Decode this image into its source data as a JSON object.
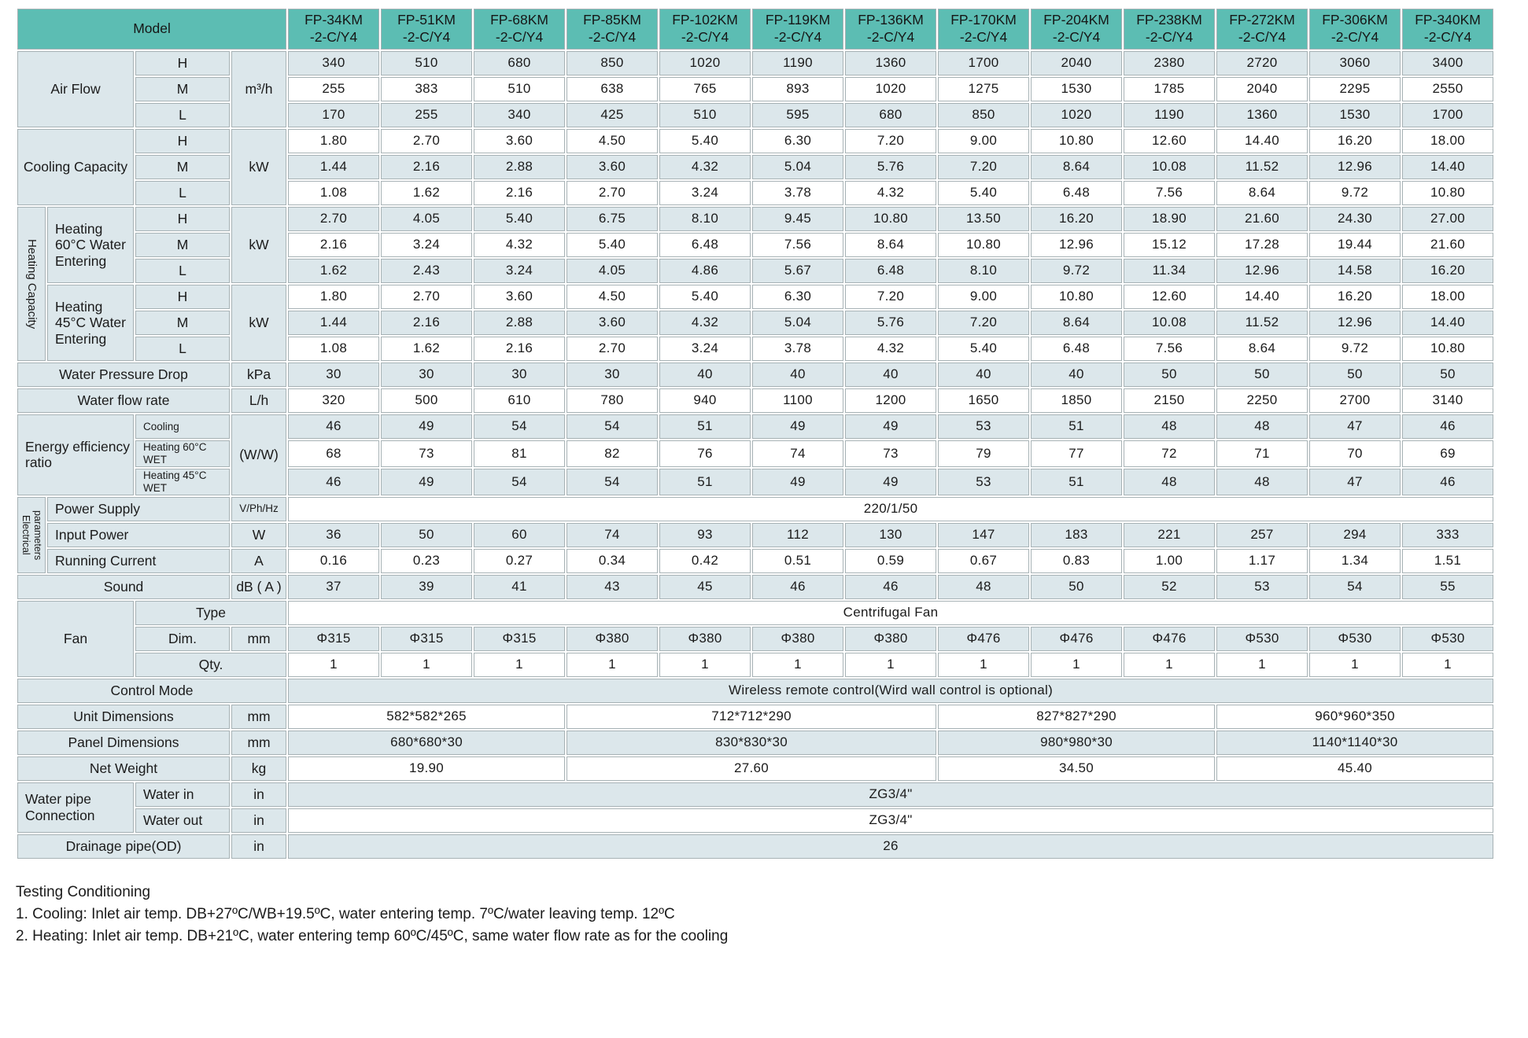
{
  "header": {
    "model_label": "Model",
    "models": [
      [
        "FP-34KM",
        "-2-C/Y4"
      ],
      [
        "FP-51KM",
        "-2-C/Y4"
      ],
      [
        "FP-68KM",
        "-2-C/Y4"
      ],
      [
        "FP-85KM",
        "-2-C/Y4"
      ],
      [
        "FP-102KM",
        "-2-C/Y4"
      ],
      [
        "FP-119KM",
        "-2-C/Y4"
      ],
      [
        "FP-136KM",
        "-2-C/Y4"
      ],
      [
        "FP-170KM",
        "-2-C/Y4"
      ],
      [
        "FP-204KM",
        "-2-C/Y4"
      ],
      [
        "FP-238KM",
        "-2-C/Y4"
      ],
      [
        "FP-272KM",
        "-2-C/Y4"
      ],
      [
        "FP-306KM",
        "-2-C/Y4"
      ],
      [
        "FP-340KM",
        "-2-C/Y4"
      ]
    ]
  },
  "colors": {
    "header_teal": "#5cbdb3",
    "row_shade": "#dce7eb",
    "grid_line": "#a7b2b5"
  },
  "table": {
    "rows": [
      {
        "n": "airflow-h",
        "cells": [
          {
            "t": "Air Flow",
            "c": 2,
            "r": 3
          },
          {
            "t": "H"
          },
          {
            "t": "m³/h",
            "r": 3
          }
        ],
        "vals": [
          "340",
          "510",
          "680",
          "850",
          "1020",
          "1190",
          "1360",
          "1700",
          "2040",
          "2380",
          "2720",
          "3060",
          "3400"
        ]
      },
      {
        "n": "airflow-m",
        "cells": [
          {
            "t": "M"
          }
        ],
        "vals": [
          "255",
          "383",
          "510",
          "638",
          "765",
          "893",
          "1020",
          "1275",
          "1530",
          "1785",
          "2040",
          "2295",
          "2550"
        ]
      },
      {
        "n": "airflow-l",
        "cells": [
          {
            "t": "L"
          }
        ],
        "vals": [
          "170",
          "255",
          "340",
          "425",
          "510",
          "595",
          "680",
          "850",
          "1020",
          "1190",
          "1360",
          "1530",
          "1700"
        ]
      },
      {
        "n": "cooling-h",
        "cells": [
          {
            "t": "Cooling Capacity",
            "c": 2,
            "r": 3
          },
          {
            "t": "H"
          },
          {
            "t": "kW",
            "r": 3
          }
        ],
        "vals": [
          "1.80",
          "2.70",
          "3.60",
          "4.50",
          "5.40",
          "6.30",
          "7.20",
          "9.00",
          "10.80",
          "12.60",
          "14.40",
          "16.20",
          "18.00"
        ]
      },
      {
        "n": "cooling-m",
        "cells": [
          {
            "t": "M"
          }
        ],
        "vals": [
          "1.44",
          "2.16",
          "2.88",
          "3.60",
          "4.32",
          "5.04",
          "5.76",
          "7.20",
          "8.64",
          "10.08",
          "11.52",
          "12.96",
          "14.40"
        ]
      },
      {
        "n": "cooling-l",
        "cells": [
          {
            "t": "L"
          }
        ],
        "vals": [
          "1.08",
          "1.62",
          "2.16",
          "2.70",
          "3.24",
          "3.78",
          "4.32",
          "5.40",
          "6.48",
          "7.56",
          "8.64",
          "9.72",
          "10.80"
        ]
      },
      {
        "n": "heating60-h",
        "cells": [
          {
            "t": "Heating Capacity",
            "r": 6,
            "v": 1
          },
          {
            "t": "Heating 60°C Water Entering",
            "r": 3,
            "a": 1
          },
          {
            "t": "H"
          },
          {
            "t": "kW",
            "r": 3
          }
        ],
        "vals": [
          "2.70",
          "4.05",
          "5.40",
          "6.75",
          "8.10",
          "9.45",
          "10.80",
          "13.50",
          "16.20",
          "18.90",
          "21.60",
          "24.30",
          "27.00"
        ]
      },
      {
        "n": "heating60-m",
        "cells": [
          {
            "t": "M"
          }
        ],
        "vals": [
          "2.16",
          "3.24",
          "4.32",
          "5.40",
          "6.48",
          "7.56",
          "8.64",
          "10.80",
          "12.96",
          "15.12",
          "17.28",
          "19.44",
          "21.60"
        ]
      },
      {
        "n": "heating60-l",
        "cells": [
          {
            "t": "L"
          }
        ],
        "vals": [
          "1.62",
          "2.43",
          "3.24",
          "4.05",
          "4.86",
          "5.67",
          "6.48",
          "8.10",
          "9.72",
          "11.34",
          "12.96",
          "14.58",
          "16.20"
        ]
      },
      {
        "n": "heating45-h",
        "cells": [
          {
            "t": "Heating 45°C Water Entering",
            "r": 3,
            "a": 1
          },
          {
            "t": "H"
          },
          {
            "t": "kW",
            "r": 3
          }
        ],
        "vals": [
          "1.80",
          "2.70",
          "3.60",
          "4.50",
          "5.40",
          "6.30",
          "7.20",
          "9.00",
          "10.80",
          "12.60",
          "14.40",
          "16.20",
          "18.00"
        ]
      },
      {
        "n": "heating45-m",
        "cells": [
          {
            "t": "M"
          }
        ],
        "vals": [
          "1.44",
          "2.16",
          "2.88",
          "3.60",
          "4.32",
          "5.04",
          "5.76",
          "7.20",
          "8.64",
          "10.08",
          "11.52",
          "12.96",
          "14.40"
        ]
      },
      {
        "n": "heating45-l",
        "cells": [
          {
            "t": "L"
          }
        ],
        "vals": [
          "1.08",
          "1.62",
          "2.16",
          "2.70",
          "3.24",
          "3.78",
          "4.32",
          "5.40",
          "6.48",
          "7.56",
          "8.64",
          "9.72",
          "10.80"
        ]
      },
      {
        "n": "water-pressure-drop",
        "cells": [
          {
            "t": "Water Pressure Drop",
            "c": 3
          },
          {
            "t": "kPa"
          }
        ],
        "vals": [
          "30",
          "30",
          "30",
          "30",
          "40",
          "40",
          "40",
          "40",
          "40",
          "50",
          "50",
          "50",
          "50"
        ]
      },
      {
        "n": "water-flow-rate",
        "cells": [
          {
            "t": "Water flow rate",
            "c": 3
          },
          {
            "t": "L/h"
          }
        ],
        "vals": [
          "320",
          "500",
          "610",
          "780",
          "940",
          "1100",
          "1200",
          "1650",
          "1850",
          "2150",
          "2250",
          "2700",
          "3140"
        ]
      },
      {
        "n": "eer-cooling",
        "cells": [
          {
            "t": "Energy efficiency ratio",
            "c": 2,
            "r": 3,
            "a": 1
          },
          {
            "t": "Cooling",
            "a": 1,
            "sm": 1
          },
          {
            "t": "(W/W)",
            "r": 3
          }
        ],
        "vals": [
          "46",
          "49",
          "54",
          "54",
          "51",
          "49",
          "49",
          "53",
          "51",
          "48",
          "48",
          "47",
          "46"
        ]
      },
      {
        "n": "eer-heating60",
        "cells": [
          {
            "t": "Heating 60°C WET",
            "a": 1,
            "sm": 1
          }
        ],
        "vals": [
          "68",
          "73",
          "81",
          "82",
          "76",
          "74",
          "73",
          "79",
          "77",
          "72",
          "71",
          "70",
          "69"
        ]
      },
      {
        "n": "eer-heating45",
        "cells": [
          {
            "t": "Heating 45°C WET",
            "a": 1,
            "sm": 1
          }
        ],
        "vals": [
          "46",
          "49",
          "54",
          "54",
          "51",
          "49",
          "49",
          "53",
          "51",
          "48",
          "48",
          "47",
          "46"
        ]
      },
      {
        "n": "power-supply",
        "cells": [
          {
            "t": "Electrical parameters",
            "r": 3,
            "v": 1,
            "sm": 1
          },
          {
            "t": "Power Supply",
            "c": 2,
            "a": 1
          },
          {
            "t": "V/Ph/Hz",
            "sm": 1
          }
        ],
        "spans": [
          {
            "c": 13,
            "t": "220/1/50"
          }
        ]
      },
      {
        "n": "input-power",
        "cells": [
          {
            "t": "Input Power",
            "c": 2,
            "a": 1
          },
          {
            "t": "W"
          }
        ],
        "vals": [
          "36",
          "50",
          "60",
          "74",
          "93",
          "112",
          "130",
          "147",
          "183",
          "221",
          "257",
          "294",
          "333"
        ]
      },
      {
        "n": "running-current",
        "cells": [
          {
            "t": "Running Current",
            "c": 2,
            "a": 1
          },
          {
            "t": "A"
          }
        ],
        "vals": [
          "0.16",
          "0.23",
          "0.27",
          "0.34",
          "0.42",
          "0.51",
          "0.59",
          "0.67",
          "0.83",
          "1.00",
          "1.17",
          "1.34",
          "1.51"
        ]
      },
      {
        "n": "sound",
        "cells": [
          {
            "t": "Sound",
            "c": 3
          },
          {
            "t": "dB ( A )"
          }
        ],
        "vals": [
          "37",
          "39",
          "41",
          "43",
          "45",
          "46",
          "46",
          "48",
          "50",
          "52",
          "53",
          "54",
          "55"
        ]
      },
      {
        "n": "fan-type",
        "cells": [
          {
            "t": "Fan",
            "c": 2,
            "r": 3
          },
          {
            "t": "Type",
            "c": 2
          }
        ],
        "spans": [
          {
            "c": 13,
            "t": "Centrifugal Fan"
          }
        ]
      },
      {
        "n": "fan-dim",
        "cells": [
          {
            "t": "Dim."
          },
          {
            "t": "mm"
          }
        ],
        "vals": [
          "Φ315",
          "Φ315",
          "Φ315",
          "Φ380",
          "Φ380",
          "Φ380",
          "Φ380",
          "Φ476",
          "Φ476",
          "Φ476",
          "Φ530",
          "Φ530",
          "Φ530"
        ]
      },
      {
        "n": "fan-qty",
        "cells": [
          {
            "t": "Qty.",
            "c": 2
          }
        ],
        "vals": [
          "1",
          "1",
          "1",
          "1",
          "1",
          "1",
          "1",
          "1",
          "1",
          "1",
          "1",
          "1",
          "1"
        ]
      },
      {
        "n": "control-mode",
        "cells": [
          {
            "t": "Control Mode",
            "c": 4
          }
        ],
        "spans": [
          {
            "c": 13,
            "t": "Wireless remote control(Wird wall control is optional)"
          }
        ]
      },
      {
        "n": "unit-dimensions",
        "cells": [
          {
            "t": "Unit Dimensions",
            "c": 3
          },
          {
            "t": "mm"
          }
        ],
        "spans": [
          {
            "c": 3,
            "t": "582*582*265"
          },
          {
            "c": 4,
            "t": "712*712*290"
          },
          {
            "c": 3,
            "t": "827*827*290"
          },
          {
            "c": 3,
            "t": "960*960*350"
          }
        ]
      },
      {
        "n": "panel-dimensions",
        "cells": [
          {
            "t": "Panel Dimensions",
            "c": 3
          },
          {
            "t": "mm"
          }
        ],
        "spans": [
          {
            "c": 3,
            "t": "680*680*30"
          },
          {
            "c": 4,
            "t": "830*830*30"
          },
          {
            "c": 3,
            "t": "980*980*30"
          },
          {
            "c": 3,
            "t": "1140*1140*30"
          }
        ]
      },
      {
        "n": "net-weight",
        "cells": [
          {
            "t": "Net Weight",
            "c": 3
          },
          {
            "t": "kg"
          }
        ],
        "spans": [
          {
            "c": 3,
            "t": "19.90"
          },
          {
            "c": 4,
            "t": "27.60"
          },
          {
            "c": 3,
            "t": "34.50"
          },
          {
            "c": 3,
            "t": "45.40"
          }
        ]
      },
      {
        "n": "water-in",
        "cells": [
          {
            "t": "Water pipe Connection",
            "c": 2,
            "r": 2,
            "a": 1
          },
          {
            "t": "Water in",
            "a": 1
          },
          {
            "t": "in"
          }
        ],
        "spans": [
          {
            "c": 13,
            "t": "ZG3/4\""
          }
        ]
      },
      {
        "n": "water-out",
        "cells": [
          {
            "t": "Water out",
            "a": 1
          },
          {
            "t": "in"
          }
        ],
        "spans": [
          {
            "c": 13,
            "t": "ZG3/4\""
          }
        ]
      },
      {
        "n": "drainage-pipe",
        "cells": [
          {
            "t": "Drainage pipe(OD)",
            "c": 3
          },
          {
            "t": "in"
          }
        ],
        "spans": [
          {
            "c": 13,
            "t": "26"
          }
        ]
      }
    ]
  },
  "notes": {
    "title": "Testing Conditioning",
    "line1": "1. Cooling: Inlet air temp. DB+27ºC/WB+19.5ºC, water entering temp. 7ºC/water leaving temp. 12ºC",
    "line2": "2. Heating: Inlet air temp. DB+21ºC, water entering temp 60ºC/45ºC, same water flow rate as for the cooling"
  }
}
